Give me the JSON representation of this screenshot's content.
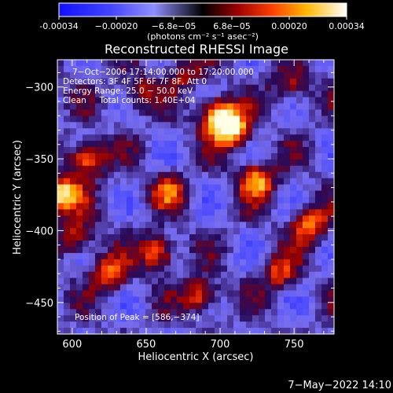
{
  "chart_data": {
    "type": "heatmap",
    "title": "Reconstructed RHESSI Image",
    "xlabel": "Heliocentric X (arcsec)",
    "ylabel": "Heliocentric Y (arcsec)",
    "xlim": [
      590,
      777
    ],
    "ylim": [
      -472,
      -281
    ],
    "xticks": [
      600,
      650,
      700,
      750
    ],
    "yticks": [
      -300,
      -350,
      -400,
      -450
    ],
    "colorbar": {
      "label": "(photons cm⁻² s⁻¹ asec⁻²)",
      "range": [
        -0.00034,
        0.00034
      ],
      "ticks": [
        "-0.00034",
        "−0.00020",
        "−6.8e−05",
        "6.8e−05",
        "0.00020",
        "0.00034"
      ]
    },
    "annotations": [
      "7−Oct−2006 17:14:00.000 to 17:20:00.000",
      "Detectors: 3F 4F 5F 6F 7F 8F, Att 0",
      "Energy Range: 25.0 − 50.0 keV",
      "Clean     Total counts: 1.40E+04"
    ],
    "peak_label": "Position of Peak = [586,−374]",
    "peak": [
      586,
      -374
    ],
    "bright_regions": [
      {
        "x": 699,
        "y": -320,
        "level": 1.0
      },
      {
        "x": 708,
        "y": -330,
        "level": 0.9
      },
      {
        "x": 593,
        "y": -375,
        "level": 0.95
      },
      {
        "x": 610,
        "y": -350,
        "level": 0.8
      },
      {
        "x": 725,
        "y": -365,
        "level": 0.75
      },
      {
        "x": 760,
        "y": -395,
        "level": 0.7
      },
      {
        "x": 658,
        "y": -415,
        "level": 0.7
      },
      {
        "x": 625,
        "y": -430,
        "level": 0.65
      },
      {
        "x": 687,
        "y": -445,
        "level": 0.65
      },
      {
        "x": 603,
        "y": -405,
        "level": 0.55
      },
      {
        "x": 665,
        "y": -372,
        "level": 0.5
      },
      {
        "x": 740,
        "y": -430,
        "level": 0.5
      },
      {
        "x": 645,
        "y": -305,
        "level": 0.45
      },
      {
        "x": 748,
        "y": -300,
        "level": 0.45
      },
      {
        "x": 675,
        "y": -290,
        "level": 0.4
      }
    ],
    "colors": {
      "negative": "#2020ff",
      "midpoint": "#000000",
      "positive": "#ffffff"
    }
  },
  "footer_date": "7−May−2022 14:10"
}
